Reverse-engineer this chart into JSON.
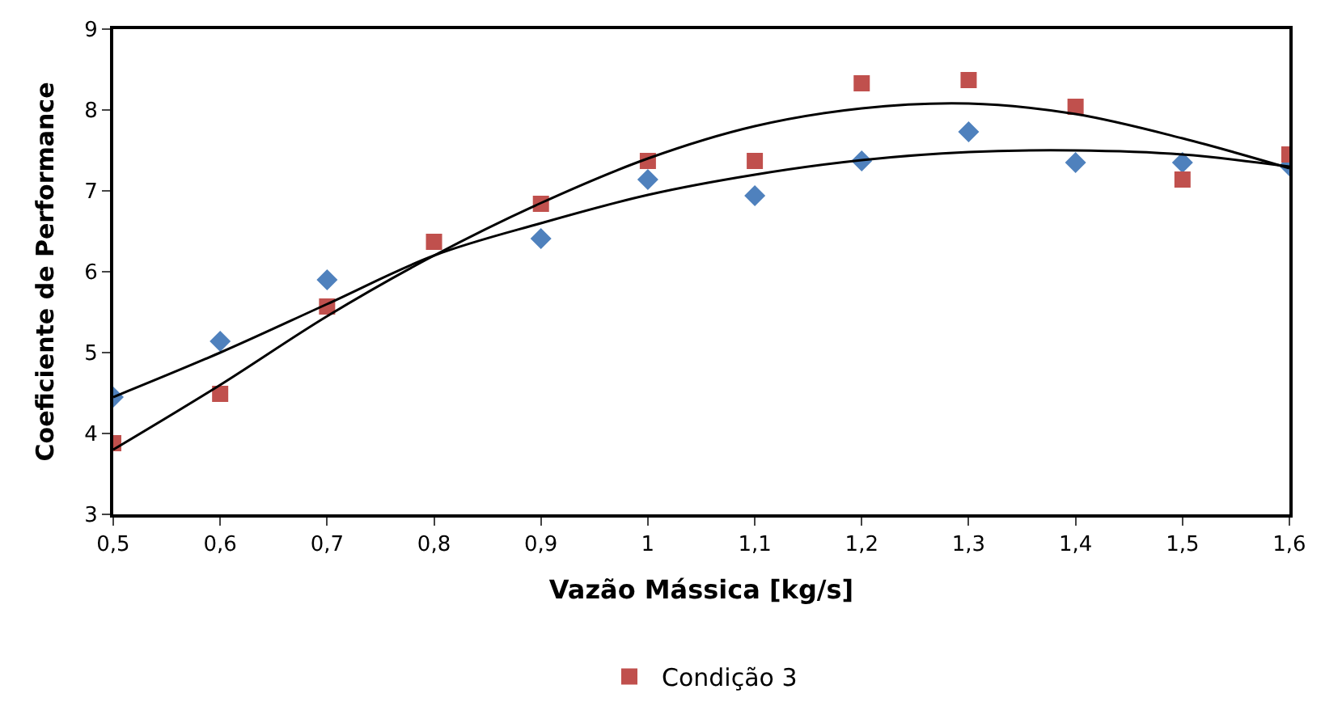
{
  "chart_data": {
    "type": "scatter",
    "xlabel": "Vazão Mássica [kg/s]",
    "ylabel": "Coeficiente de Performance",
    "x": [
      0.5,
      0.6,
      0.7,
      0.8,
      0.9,
      1.0,
      1.1,
      1.2,
      1.3,
      1.4,
      1.5,
      1.6
    ],
    "series": [
      {
        "color": "#4f81bd",
        "marker": "diamond",
        "values": [
          4.45,
          5.14,
          5.9,
          null,
          6.41,
          7.14,
          6.94,
          7.37,
          7.73,
          7.35,
          7.35,
          7.31
        ]
      },
      {
        "name": "Condição 3",
        "color": "#c0504d",
        "marker": "square",
        "values": [
          3.88,
          4.49,
          5.57,
          6.37,
          6.84,
          7.37,
          7.37,
          8.33,
          8.37,
          8.04,
          7.14,
          7.45
        ]
      },
      {
        "type": "line",
        "color": "#000000",
        "marker": "none",
        "x": [
          0.5,
          0.6,
          0.7,
          0.8,
          0.9,
          1.0,
          1.1,
          1.2,
          1.3,
          1.4,
          1.5,
          1.6
        ],
        "values": [
          4.45,
          5.0,
          5.6,
          6.2,
          6.6,
          6.95,
          7.2,
          7.38,
          7.48,
          7.5,
          7.45,
          7.3
        ]
      },
      {
        "type": "line",
        "color": "#000000",
        "marker": "none",
        "x": [
          0.5,
          0.6,
          0.7,
          0.8,
          0.9,
          1.0,
          1.1,
          1.2,
          1.3,
          1.4,
          1.5,
          1.6
        ],
        "values": [
          3.8,
          4.6,
          5.45,
          6.2,
          6.85,
          7.4,
          7.8,
          8.02,
          8.08,
          7.95,
          7.65,
          7.28
        ]
      }
    ],
    "xlim": [
      0.5,
      1.6
    ],
    "xticks": [
      {
        "value": 0.5,
        "label": "0,5"
      },
      {
        "value": 0.6,
        "label": "0,6"
      },
      {
        "value": 0.7,
        "label": "0,7"
      },
      {
        "value": 0.8,
        "label": "0,8"
      },
      {
        "value": 0.9,
        "label": "0,9"
      },
      {
        "value": 1.0,
        "label": "1"
      },
      {
        "value": 1.1,
        "label": "1,1"
      },
      {
        "value": 1.2,
        "label": "1,2"
      },
      {
        "value": 1.3,
        "label": "1,3"
      },
      {
        "value": 1.4,
        "label": "1,4"
      },
      {
        "value": 1.5,
        "label": "1,5"
      },
      {
        "value": 1.6,
        "label": "1,6"
      }
    ],
    "ylim": [
      3,
      9
    ],
    "yticks": [
      3,
      4,
      5,
      6,
      7,
      8,
      9
    ],
    "legend": "bottom"
  }
}
